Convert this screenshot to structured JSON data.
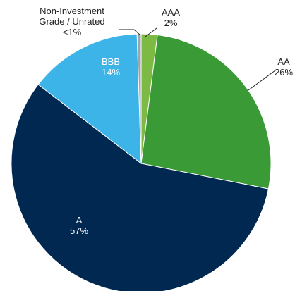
{
  "chart_data": {
    "type": "pie",
    "categories": [
      "AAA",
      "AA",
      "A",
      "BBB",
      "Non-Investment Grade / Unrated"
    ],
    "values": [
      2,
      26,
      57,
      14,
      0.5
    ],
    "value_labels": [
      "2%",
      "26%",
      "57%",
      "14%",
      "<1%"
    ],
    "colors": [
      "#7cba44",
      "#3a9b36",
      "#002851",
      "#3cb4e7",
      "#9aa5b1"
    ]
  }
}
